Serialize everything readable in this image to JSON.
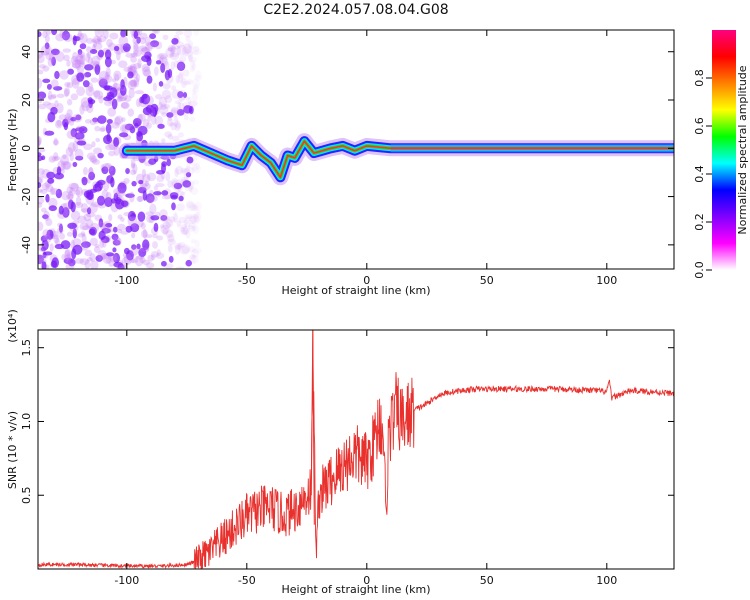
{
  "title": "C2E2.2024.057.08.04.G08",
  "chart_data": [
    {
      "type": "heatmap",
      "xlabel": "Height of straight line (km)",
      "ylabel": "Frequency (Hz)",
      "xlim": [
        -137,
        128
      ],
      "ylim": [
        -50,
        49
      ],
      "xticks": [
        -100,
        -50,
        0,
        50,
        100
      ],
      "yticks": [
        -40,
        -20,
        0,
        20,
        40
      ],
      "colorbar": {
        "label": "Normalized spectral amplitude",
        "range": [
          0,
          1
        ],
        "ticks": [
          "0.0",
          "0.2",
          "0.4",
          "0.6",
          "0.8"
        ],
        "colors": [
          "#ffffff",
          "#ff00ff",
          "#8000ff",
          "#0000ff",
          "#00ffff",
          "#00ff00",
          "#ffff00",
          "#ff8000",
          "#ff0000",
          "#ff0080"
        ]
      },
      "noise_region_x": [
        -137,
        -70
      ],
      "ridge": [
        {
          "x": -100,
          "y": -1
        },
        {
          "x": -80,
          "y": -1
        },
        {
          "x": -72,
          "y": 1
        },
        {
          "x": -65,
          "y": -2
        },
        {
          "x": -58,
          "y": -5
        },
        {
          "x": -52,
          "y": -7
        },
        {
          "x": -48,
          "y": 1
        },
        {
          "x": -44,
          "y": -3
        },
        {
          "x": -40,
          "y": -6
        },
        {
          "x": -36,
          "y": -12
        },
        {
          "x": -33,
          "y": -3
        },
        {
          "x": -30,
          "y": -4
        },
        {
          "x": -26,
          "y": 3
        },
        {
          "x": -22,
          "y": -2
        },
        {
          "x": -15,
          "y": 0
        },
        {
          "x": -10,
          "y": 1
        },
        {
          "x": -5,
          "y": -1
        },
        {
          "x": 0,
          "y": 1
        },
        {
          "x": 10,
          "y": 0
        },
        {
          "x": 128,
          "y": 0
        }
      ]
    },
    {
      "type": "line",
      "xlabel": "Height of straight line (km)",
      "ylabel": "SNR (10 * v/v)",
      "y_multiplier": "(x10⁴)",
      "xlim": [
        -137,
        128
      ],
      "ylim": [
        0,
        1.62
      ],
      "xticks": [
        -100,
        -50,
        0,
        50,
        100
      ],
      "yticks": [
        "0.5",
        "1.0",
        "1.5"
      ],
      "series": [
        {
          "color": "#e8302d",
          "points": [
            [
              -137,
              0.03
            ],
            [
              -120,
              0.03
            ],
            [
              -100,
              0.02
            ],
            [
              -85,
              0.02
            ],
            [
              -75,
              0.03
            ],
            [
              -70,
              0.06
            ],
            [
              -65,
              0.12
            ],
            [
              -60,
              0.2
            ],
            [
              -55,
              0.28
            ],
            [
              -50,
              0.36
            ],
            [
              -45,
              0.4
            ],
            [
              -40,
              0.42
            ],
            [
              -35,
              0.36
            ],
            [
              -30,
              0.4
            ],
            [
              -26,
              0.48
            ],
            [
              -23,
              0.55
            ],
            [
              -22.5,
              1.6
            ],
            [
              -22,
              0.9
            ],
            [
              -21,
              0.1
            ],
            [
              -20,
              0.5
            ],
            [
              -15,
              0.6
            ],
            [
              -10,
              0.7
            ],
            [
              -5,
              0.78
            ],
            [
              0,
              0.72
            ],
            [
              3,
              0.85
            ],
            [
              5,
              1.0
            ],
            [
              7,
              0.95
            ],
            [
              8,
              0.3
            ],
            [
              9,
              0.9
            ],
            [
              12,
              1.08
            ],
            [
              15,
              1.0
            ],
            [
              20,
              1.08
            ],
            [
              25,
              1.12
            ],
            [
              30,
              1.18
            ],
            [
              35,
              1.2
            ],
            [
              45,
              1.22
            ],
            [
              60,
              1.22
            ],
            [
              80,
              1.22
            ],
            [
              95,
              1.21
            ],
            [
              100,
              1.2
            ],
            [
              101,
              1.28
            ],
            [
              102,
              1.16
            ],
            [
              110,
              1.21
            ],
            [
              120,
              1.2
            ],
            [
              128,
              1.19
            ]
          ]
        }
      ]
    }
  ]
}
